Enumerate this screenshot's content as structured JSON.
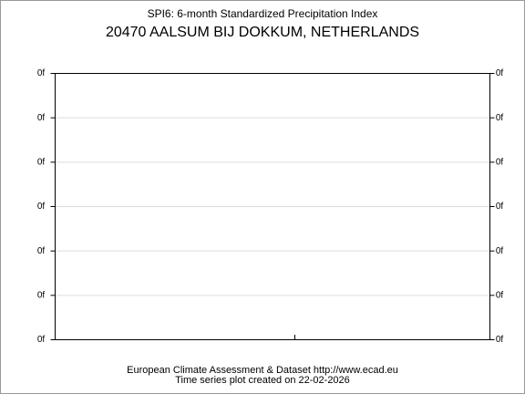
{
  "chart_data": {
    "type": "line",
    "title": "SPI6: 6-month Standardized Precipitation Index",
    "subtitle": "20470 AALSUM BIJ DOKKUM, NETHERLANDS",
    "ylim": [
      0,
      6
    ],
    "yticks": [
      {
        "value": 0,
        "label": "0f"
      },
      {
        "value": 1,
        "label": "0f"
      },
      {
        "value": 2,
        "label": "0f"
      },
      {
        "value": 3,
        "label": "0f"
      },
      {
        "value": 4,
        "label": "0f"
      },
      {
        "value": 5,
        "label": "0f"
      },
      {
        "value": 6,
        "label": "0f"
      }
    ],
    "grid": true,
    "footer": [
      "European Climate Assessment & Dataset  http://www.ecad.eu",
      "Time series plot created on 22-02-2026"
    ]
  }
}
